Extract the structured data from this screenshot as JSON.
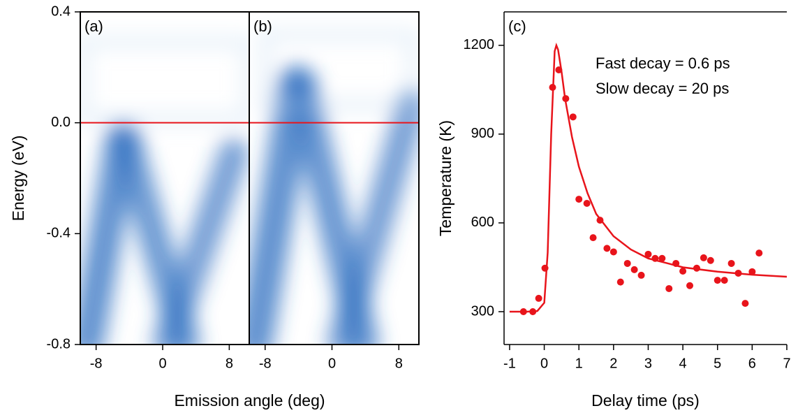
{
  "chart_data": [
    {
      "type": "image",
      "panel_label": "(a)",
      "ylabel": "Energy (eV)",
      "xlabel": "Emission angle (deg)",
      "xlim": [
        -9.9,
        10.4
      ],
      "xticks": [
        -8,
        0,
        8
      ],
      "ylim": [
        -0.8,
        0.4
      ],
      "yticks": [
        {
          "value": -0.8,
          "label": "-0.8"
        },
        {
          "value": -0.4,
          "label": "-0.4"
        },
        {
          "value": 0,
          "label": "0.0"
        },
        0.4
      ],
      "hline": 0,
      "hline_color": "#e8141b"
    },
    {
      "type": "image",
      "panel_label": "(b)",
      "xlim": [
        -9.9,
        10.4
      ],
      "xticks": [
        -8,
        0,
        8
      ],
      "ylim": [
        -0.8,
        0.4
      ],
      "hline": 0,
      "hline_color": "#e8141b"
    },
    {
      "type": "scatter",
      "panel_label": "(c)",
      "xlabel": "Delay time (ps)",
      "ylabel": "Temperature (K)",
      "annotations": [
        "Fast decay = 0.6 ps",
        "Slow decay = 20 ps"
      ],
      "xlim": [
        -1.16,
        7
      ],
      "xticks": [
        -1,
        0,
        1,
        2,
        3,
        4,
        5,
        6,
        7
      ],
      "ylim": [
        189,
        1313
      ],
      "yticks": [
        300,
        600,
        900,
        1200
      ],
      "series": [
        {
          "color": "#e8141b",
          "mode": "markers",
          "x": [
            -0.6,
            -0.33,
            -0.16,
            0.02,
            0.24,
            0.42,
            0.62,
            0.83,
            1.0,
            1.23,
            1.41,
            1.61,
            1.81,
            2.0,
            2.2,
            2.4,
            2.6,
            2.8,
            3.0,
            3.2,
            3.4,
            3.6,
            3.8,
            4.0,
            4.2,
            4.4,
            4.6,
            4.8,
            5.0,
            5.2,
            5.4,
            5.6,
            5.8,
            6.0,
            6.2
          ],
          "values": [
            300,
            300,
            345,
            447,
            1058,
            1117,
            1020,
            958,
            680,
            666,
            550,
            609,
            514,
            502,
            400,
            463,
            442,
            423,
            494,
            480,
            480,
            378,
            463,
            437,
            388,
            447,
            482,
            473,
            406,
            406,
            463,
            430,
            328,
            435,
            498
          ]
        },
        {
          "color": "#e8141b",
          "mode": "line",
          "x": [
            -1.0,
            -0.5,
            -0.2,
            0,
            0.1,
            0.2,
            0.3,
            0.35,
            0.4,
            0.5,
            0.6,
            0.8,
            1.0,
            1.25,
            1.5,
            2,
            2.5,
            3,
            3.5,
            4,
            5,
            6,
            7
          ],
          "values": [
            300,
            300,
            302,
            330,
            500,
            900,
            1180,
            1200,
            1185,
            1110,
            1020,
            890,
            790,
            700,
            630,
            555,
            510,
            480,
            465,
            450,
            435,
            425,
            418
          ]
        }
      ]
    }
  ]
}
